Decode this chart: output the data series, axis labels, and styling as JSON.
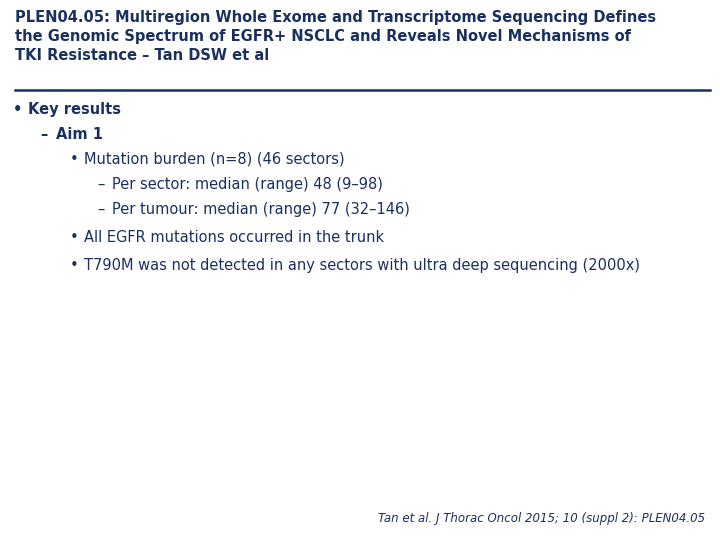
{
  "title_line1": "PLEN04.05: Multiregion Whole Exome and Transcriptome Sequencing Defines",
  "title_line2": "the Genomic Spectrum of EGFR+ NSCLC and Reveals Novel Mechanisms of",
  "title_line3": "TKI Resistance – Tan DSW et al",
  "background_color": "#ffffff",
  "title_color": "#1a3060",
  "text_color": "#1a3060",
  "separator_color": "#1a3060",
  "footer_text": "Tan et al. J Thorac Oncol 2015; 10 (suppl 2): PLEN04.05",
  "bullet1": "Key results",
  "dash1": "Aim 1",
  "sub_bullet1": "Mutation burden (n=8) (46 sectors)",
  "dash2": "Per sector: median (range) 48 (9–98)",
  "dash3": "Per tumour: median (range) 77 (32–146)",
  "sub_bullet2": "All EGFR mutations occurred in the trunk",
  "sub_bullet3": "T790M was not detected in any sectors with ultra deep sequencing (2000x)",
  "title_fontsize": 10.5,
  "body_fontsize": 10.5,
  "footer_fontsize": 8.5
}
